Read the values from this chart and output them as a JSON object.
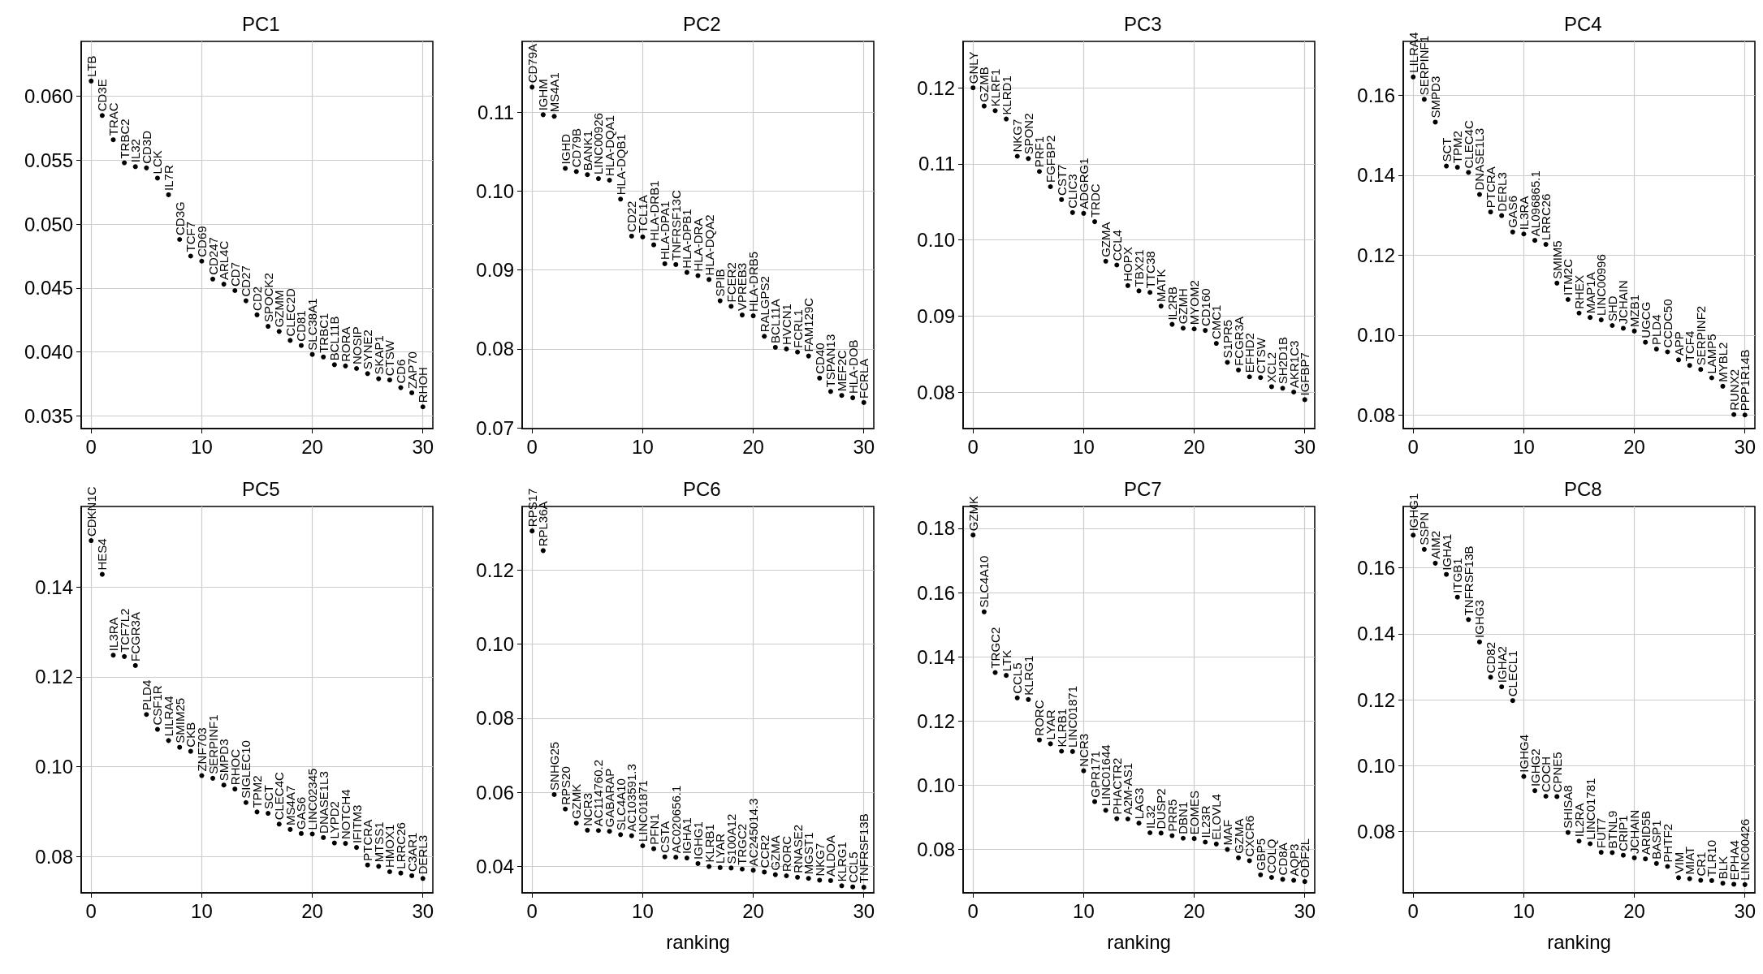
{
  "chart_data": [
    {
      "type": "scatter",
      "title": "PC1",
      "grid": true,
      "xlim": [
        -0.9,
        30.9
      ],
      "xticks": [
        0,
        10,
        20,
        30
      ],
      "ylim": [
        0.034,
        0.0643
      ],
      "yticks": [
        0.035,
        {
          "value": 0.04,
          "label": "0.040"
        },
        0.045,
        {
          "value": 0.05,
          "label": "0.050"
        },
        0.055,
        {
          "value": 0.06,
          "label": "0.060"
        }
      ],
      "x": [
        0,
        1,
        2,
        3,
        4,
        5,
        6,
        7,
        8,
        9,
        10,
        11,
        12,
        13,
        14,
        15,
        16,
        17,
        18,
        19,
        20,
        21,
        22,
        23,
        24,
        25,
        26,
        27,
        28,
        29,
        30
      ],
      "values": [
        0.0612,
        0.0585,
        0.0566,
        0.0548,
        0.0545,
        0.0544,
        0.0536,
        0.0523,
        0.0488,
        0.0475,
        0.0471,
        0.0457,
        0.0453,
        0.0448,
        0.044,
        0.0429,
        0.042,
        0.0416,
        0.0409,
        0.0405,
        0.0398,
        0.0396,
        0.039,
        0.0389,
        0.0387,
        0.0383,
        0.0379,
        0.0378,
        0.0372,
        0.0368,
        0.0357
      ],
      "value_labels": [
        "LTB",
        "CD3E",
        "TRAC",
        "TRBC2",
        "IL32",
        "CD3D",
        "LCK",
        "IL7R",
        "CD3G",
        "TCF7",
        "CD69",
        "CD247",
        "ARL4C",
        "CD7",
        "CD27",
        "CD2",
        "SPOCK2",
        "GZMM",
        "CLEC2D",
        "CD81",
        "SLC38A1",
        "TRBC1",
        "BCL11B",
        "RORA",
        "NOSIP",
        "SYNE2",
        "SKAP1",
        "CTSW",
        "CD6",
        "ZAP70",
        "RHOH"
      ]
    },
    {
      "type": "scatter",
      "title": "PC2",
      "grid": true,
      "xlim": [
        -0.9,
        30.9
      ],
      "xticks": [
        0,
        10,
        20,
        30
      ],
      "ylim": [
        0.0699,
        0.119
      ],
      "yticks": [
        0.07,
        0.08,
        0.09,
        {
          "value": 0.1,
          "label": "0.10"
        },
        0.11
      ],
      "x": [
        0,
        1,
        2,
        3,
        4,
        5,
        6,
        7,
        8,
        9,
        10,
        11,
        12,
        13,
        14,
        15,
        16,
        17,
        18,
        19,
        20,
        21,
        22,
        23,
        24,
        25,
        26,
        27,
        28,
        29,
        30
      ],
      "values": [
        0.1132,
        0.1097,
        0.1095,
        0.1029,
        0.1025,
        0.1021,
        0.1016,
        0.1014,
        0.099,
        0.0943,
        0.0942,
        0.0932,
        0.0908,
        0.0907,
        0.0897,
        0.0893,
        0.0888,
        0.0861,
        0.0854,
        0.0843,
        0.0842,
        0.0816,
        0.0802,
        0.08,
        0.0796,
        0.0791,
        0.0763,
        0.0746,
        0.0741,
        0.0738,
        0.0732
      ],
      "value_labels": [
        "CD79A",
        "IGHM",
        "MS4A1",
        "IGHD",
        "CD79B",
        "BANK1",
        "LINC00926",
        "HLA-DQA1",
        "HLA-DQB1",
        "CD22",
        "TCL1A",
        "HLA-DRB1",
        "HLA-DPA1",
        "TNFRSF13C",
        "HLA-DPB1",
        "HLA-DRA",
        "HLA-DQA2",
        "SPIB",
        "FCER2",
        "VPREB3",
        "HLA-DRB5",
        "RALGPS2",
        "BCL11A",
        "HVCN1",
        "FCRL1",
        "FAM129C",
        "CD40",
        "TSPAN13",
        "MEF2C",
        "HLA-DOB",
        "FCRLA"
      ]
    },
    {
      "type": "scatter",
      "title": "PC3",
      "grid": true,
      "xlim": [
        -0.9,
        30.9
      ],
      "xticks": [
        0,
        10,
        20,
        30
      ],
      "ylim": [
        0.0752,
        0.1261
      ],
      "yticks": [
        0.08,
        0.09,
        {
          "value": 0.1,
          "label": "0.10"
        },
        0.11,
        0.12
      ],
      "x": [
        0,
        1,
        2,
        3,
        4,
        5,
        6,
        7,
        8,
        9,
        10,
        11,
        12,
        13,
        14,
        15,
        16,
        17,
        18,
        19,
        20,
        21,
        22,
        23,
        24,
        25,
        26,
        27,
        28,
        29,
        30
      ],
      "values": [
        0.12,
        0.1176,
        0.117,
        0.1159,
        0.111,
        0.1107,
        0.109,
        0.107,
        0.1053,
        0.1036,
        0.1035,
        0.1024,
        0.0972,
        0.0967,
        0.094,
        0.0933,
        0.0931,
        0.0913,
        0.0889,
        0.0884,
        0.0883,
        0.0881,
        0.0864,
        0.0839,
        0.0829,
        0.082,
        0.0819,
        0.0807,
        0.0805,
        0.08,
        0.079
      ],
      "value_labels": [
        "GNLY",
        "GZMB",
        "KLRF1",
        "KLRD1",
        "NKG7",
        "SPON2",
        "PRF1",
        "FGFBP2",
        "CST7",
        "CLIC3",
        "ADGRG1",
        "TRDC",
        "GZMA",
        "CCL4",
        "HOPX",
        "TBX21",
        "TTC38",
        "MATK",
        "IL2RB",
        "GZMH",
        "MYOM2",
        "CD160",
        "CMC1",
        "S1PR5",
        "FCGR3A",
        "EFHD2",
        "CTSW",
        "XCL2",
        "SH2D1B",
        "AKR1C3",
        "IGFBP7"
      ]
    },
    {
      "type": "scatter",
      "title": "PC4",
      "grid": true,
      "xlim": [
        -0.9,
        30.9
      ],
      "xticks": [
        0,
        10,
        20,
        30
      ],
      "ylim": [
        0.0766,
        0.1735
      ],
      "yticks": [
        0.08,
        {
          "value": 0.1,
          "label": "0.10"
        },
        0.12,
        0.14,
        0.16
      ],
      "x": [
        0,
        1,
        2,
        3,
        4,
        5,
        6,
        7,
        8,
        9,
        10,
        11,
        12,
        13,
        14,
        15,
        16,
        17,
        18,
        19,
        20,
        21,
        22,
        23,
        24,
        25,
        26,
        27,
        28,
        29,
        30
      ],
      "values": [
        0.1646,
        0.159,
        0.1533,
        0.1423,
        0.142,
        0.1407,
        0.1352,
        0.1308,
        0.1299,
        0.1258,
        0.1253,
        0.1237,
        0.1227,
        0.113,
        0.1089,
        0.1055,
        0.1044,
        0.1038,
        0.1024,
        0.1017,
        0.101,
        0.0982,
        0.0965,
        0.0958,
        0.0938,
        0.0924,
        0.0914,
        0.0893,
        0.0872,
        0.0801,
        0.08
      ],
      "value_labels": [
        "LILRA4",
        "SERPINF1",
        "SMPD3",
        "SCT",
        "TPM2",
        "CLEC4C",
        "DNASE1L3",
        "PTCRA",
        "DERL3",
        "GAS6",
        "IL3RA",
        "AL096865.1",
        "LRRC26",
        "SMIM5",
        "ITM2C",
        "RHEX",
        "MAP1A",
        "LINC00996",
        "SHD",
        "JCHAIN",
        "MZB1",
        "UGCG",
        "PLD4",
        "CCDC50",
        "APP",
        "TCF4",
        "SERPINF2",
        "LAMP5",
        "MYBL2",
        "RUNX2",
        "PPP1R14B"
      ]
    },
    {
      "type": "scatter",
      "title": "PC5",
      "grid": true,
      "xlim": [
        -0.9,
        30.9
      ],
      "xticks": [
        0,
        10,
        20,
        30
      ],
      "ylim": [
        0.0719,
        0.1579
      ],
      "yticks": [
        0.08,
        {
          "value": 0.1,
          "label": "0.10"
        },
        0.12,
        0.14
      ],
      "x": [
        0,
        1,
        2,
        3,
        4,
        5,
        6,
        7,
        8,
        9,
        10,
        11,
        12,
        13,
        14,
        15,
        16,
        17,
        18,
        19,
        20,
        21,
        22,
        23,
        24,
        25,
        26,
        27,
        28,
        29,
        30
      ],
      "values": [
        0.1503,
        0.1428,
        0.1248,
        0.1245,
        0.1225,
        0.1116,
        0.1083,
        0.1058,
        0.1043,
        0.1034,
        0.098,
        0.0974,
        0.0959,
        0.095,
        0.092,
        0.0899,
        0.0896,
        0.0872,
        0.086,
        0.0851,
        0.085,
        0.0842,
        0.083,
        0.0829,
        0.082,
        0.0781,
        0.0778,
        0.0766,
        0.0763,
        0.0757,
        0.0751
      ],
      "value_labels": [
        "CDKN1C",
        "HES4",
        "IL3RA",
        "TCF7L2",
        "FCGR3A",
        "PLD4",
        "CSF1R",
        "LILRA4",
        "SMIM25",
        "CKB",
        "ZNF703",
        "SERPINF1",
        "SMPD3",
        "RHOC",
        "SIGLEC10",
        "TPM2",
        "SCT",
        "CLEC4C",
        "MS4A7",
        "GAS6",
        "LINC02345",
        "DNASE1L3",
        "LYPD2",
        "NOTCH4",
        "IFITM3",
        "PTCRA",
        "MTSS1",
        "HMOX1",
        "LRRC26",
        "C3AR1",
        "DERL3"
      ]
    },
    {
      "type": "scatter",
      "title": "PC6",
      "xlabel": "ranking",
      "grid": true,
      "xlim": [
        -0.9,
        30.9
      ],
      "xticks": [
        0,
        10,
        20,
        30
      ],
      "ylim": [
        0.0329,
        0.1371
      ],
      "yticks": [
        0.04,
        0.06,
        0.08,
        {
          "value": 0.1,
          "label": "0.10"
        },
        0.12
      ],
      "x": [
        0,
        1,
        2,
        3,
        4,
        5,
        6,
        7,
        8,
        9,
        10,
        11,
        12,
        13,
        14,
        15,
        16,
        17,
        18,
        19,
        20,
        21,
        22,
        23,
        24,
        25,
        26,
        27,
        28,
        29,
        30
      ],
      "values": [
        0.1305,
        0.1252,
        0.0594,
        0.0555,
        0.0517,
        0.0498,
        0.0497,
        0.0495,
        0.0486,
        0.0483,
        0.0456,
        0.0448,
        0.0426,
        0.0425,
        0.0423,
        0.0408,
        0.04,
        0.0397,
        0.0396,
        0.0393,
        0.039,
        0.0385,
        0.0378,
        0.0375,
        0.0371,
        0.0368,
        0.0363,
        0.0362,
        0.0348,
        0.0345,
        0.0344
      ],
      "value_labels": [
        "RPS17",
        "RPL36A",
        "SNHG25",
        "RPS20",
        "GZMK",
        "NCR3",
        "AC114760.2",
        "GABARAP",
        "SLC4A10",
        "AC103591.3",
        "LINC01871",
        "PFN1",
        "CSTA",
        "AC020656.1",
        "IGHA1",
        "IGHG1",
        "KLRB1",
        "LYAR",
        "S100A12",
        "TRGC2",
        "AC245014.3",
        "CCR2",
        "GZMA",
        "RORC",
        "RNASE2",
        "MGST1",
        "NKG7",
        "ALDOA",
        "KLRG1",
        "CCL5",
        "TNFRSF13B"
      ]
    },
    {
      "type": "scatter",
      "title": "PC7",
      "xlabel": "ranking",
      "grid": true,
      "xlim": [
        -0.9,
        30.9
      ],
      "xticks": [
        0,
        10,
        20,
        30
      ],
      "ylim": [
        0.0665,
        0.1868
      ],
      "yticks": [
        0.08,
        {
          "value": 0.1,
          "label": "0.10"
        },
        0.12,
        0.14,
        0.16,
        0.18
      ],
      "x": [
        0,
        1,
        2,
        3,
        4,
        5,
        6,
        7,
        8,
        9,
        10,
        11,
        12,
        13,
        14,
        15,
        16,
        17,
        18,
        19,
        20,
        21,
        22,
        23,
        24,
        25,
        26,
        27,
        28,
        29,
        30
      ],
      "values": [
        0.1779,
        0.154,
        0.1351,
        0.1342,
        0.1272,
        0.1267,
        0.1141,
        0.1129,
        0.1106,
        0.1105,
        0.1045,
        0.0949,
        0.0922,
        0.0896,
        0.0895,
        0.0882,
        0.0852,
        0.0851,
        0.0843,
        0.0835,
        0.0834,
        0.0823,
        0.0817,
        0.08,
        0.0774,
        0.0765,
        0.0721,
        0.0713,
        0.0707,
        0.0704,
        0.07
      ],
      "value_labels": [
        "GZMK",
        "SLC4A10",
        "TRGC2",
        "LTK",
        "CCL5",
        "KLRG1",
        "RORC",
        "LYAR",
        "KLRB1",
        "LINC01871",
        "NCR3",
        "GPR171",
        "LINC01644",
        "PHACTR2",
        "A2M-AS1",
        "LAG3",
        "IL32",
        "DUSP2",
        "PRR5",
        "DBN1",
        "EOMES",
        "IL23R",
        "ELOVL4",
        "MAF",
        "GZMA",
        "CXCR6",
        "GBP5",
        "COLQ",
        "CD8A",
        "AQP3",
        "ODF2L"
      ]
    },
    {
      "type": "scatter",
      "title": "PC8",
      "xlabel": "ranking",
      "grid": true,
      "xlim": [
        -0.9,
        30.9
      ],
      "xticks": [
        0,
        10,
        20,
        30
      ],
      "ylim": [
        0.0614,
        0.1786
      ],
      "yticks": [
        0.08,
        {
          "value": 0.1,
          "label": "0.10"
        },
        0.12,
        0.14,
        0.16
      ],
      "x": [
        0,
        1,
        2,
        3,
        4,
        5,
        6,
        7,
        8,
        9,
        10,
        11,
        12,
        13,
        14,
        15,
        16,
        17,
        18,
        19,
        20,
        21,
        22,
        23,
        24,
        25,
        26,
        27,
        28,
        29,
        30
      ],
      "values": [
        0.1699,
        0.1656,
        0.1614,
        0.158,
        0.1511,
        0.1443,
        0.1375,
        0.1268,
        0.1239,
        0.1197,
        0.0967,
        0.0924,
        0.0907,
        0.0906,
        0.0797,
        0.0771,
        0.0763,
        0.0737,
        0.0736,
        0.0728,
        0.072,
        0.0717,
        0.0703,
        0.0694,
        0.066,
        0.0657,
        0.0652,
        0.0651,
        0.0643,
        0.064,
        0.0639
      ],
      "value_labels": [
        "IGHG1",
        "SSPN",
        "AIM2",
        "IGHA1",
        "ITGB1",
        "TNFRSF13B",
        "IGHG3",
        "CD82",
        "IGHA2",
        "CLECL1",
        "IGHG4",
        "IGHG2",
        "COCH",
        "CPNE5",
        "SHISA8",
        "IL2RA",
        "LINC01781",
        "FUT7",
        "BTNL9",
        "CRIP1",
        "JCHAIN",
        "ARID5B",
        "BASP1",
        "PHTF2",
        "VIM",
        "MIAT",
        "CR1",
        "TLR10",
        "BLK",
        "EPHA4",
        "LINC00426"
      ]
    }
  ]
}
